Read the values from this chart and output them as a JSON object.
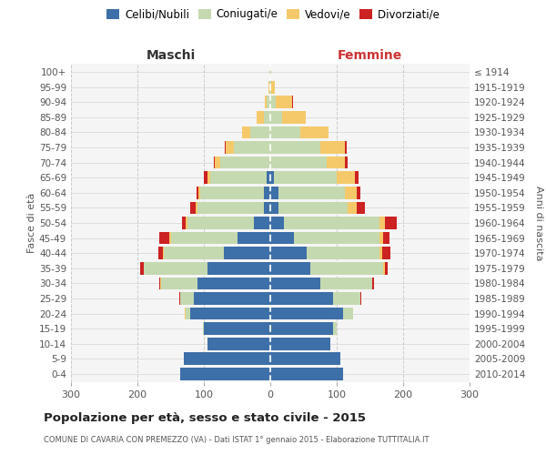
{
  "age_groups": [
    "0-4",
    "5-9",
    "10-14",
    "15-19",
    "20-24",
    "25-29",
    "30-34",
    "35-39",
    "40-44",
    "45-49",
    "50-54",
    "55-59",
    "60-64",
    "65-69",
    "70-74",
    "75-79",
    "80-84",
    "85-89",
    "90-94",
    "95-99",
    "100+"
  ],
  "birth_years": [
    "2010-2014",
    "2005-2009",
    "2000-2004",
    "1995-1999",
    "1990-1994",
    "1985-1989",
    "1980-1984",
    "1975-1979",
    "1970-1974",
    "1965-1969",
    "1960-1964",
    "1955-1959",
    "1950-1954",
    "1945-1949",
    "1940-1944",
    "1935-1939",
    "1930-1934",
    "1925-1929",
    "1920-1924",
    "1915-1919",
    "≤ 1914"
  ],
  "male_celibe": [
    135,
    130,
    95,
    100,
    120,
    115,
    110,
    95,
    70,
    50,
    25,
    10,
    10,
    5,
    0,
    0,
    0,
    0,
    0,
    0,
    0
  ],
  "male_coniugato": [
    0,
    0,
    0,
    2,
    8,
    20,
    55,
    95,
    90,
    100,
    100,
    100,
    95,
    85,
    75,
    55,
    30,
    10,
    5,
    2,
    1
  ],
  "male_vedovo": [
    0,
    0,
    0,
    0,
    1,
    1,
    1,
    1,
    1,
    2,
    2,
    2,
    3,
    5,
    8,
    12,
    12,
    10,
    3,
    1,
    0
  ],
  "male_divorziato": [
    0,
    0,
    0,
    0,
    0,
    1,
    1,
    5,
    8,
    15,
    6,
    8,
    3,
    5,
    2,
    1,
    0,
    0,
    0,
    0,
    0
  ],
  "female_celibe": [
    110,
    105,
    90,
    95,
    110,
    95,
    75,
    60,
    55,
    35,
    20,
    12,
    12,
    5,
    0,
    0,
    0,
    0,
    0,
    0,
    0
  ],
  "female_coniugato": [
    0,
    0,
    0,
    5,
    15,
    40,
    78,
    110,
    110,
    130,
    145,
    105,
    100,
    95,
    85,
    75,
    45,
    18,
    8,
    2,
    1
  ],
  "female_vedovo": [
    0,
    0,
    0,
    0,
    0,
    1,
    1,
    2,
    4,
    5,
    8,
    13,
    18,
    28,
    28,
    38,
    42,
    35,
    25,
    5,
    1
  ],
  "female_divorziato": [
    0,
    0,
    0,
    0,
    0,
    1,
    2,
    5,
    12,
    10,
    18,
    12,
    5,
    5,
    3,
    2,
    1,
    1,
    1,
    0,
    0
  ],
  "color_celibe": "#3d6fa8",
  "color_coniugato": "#c5d9b0",
  "color_vedovo": "#f5c96a",
  "color_divorziato": "#cc2222",
  "title": "Popolazione per età, sesso e stato civile - 2015",
  "subtitle": "COMUNE DI CAVARIA CON PREMEZZO (VA) - Dati ISTAT 1° gennaio 2015 - Elaborazione TUTTITALIA.IT",
  "xlabel_left": "Maschi",
  "xlabel_right": "Femmine",
  "ylabel_left": "Fasce di età",
  "ylabel_right": "Anni di nascita",
  "xlim": 300,
  "bg_color": "#f5f5f5",
  "grid_color": "#cccccc"
}
